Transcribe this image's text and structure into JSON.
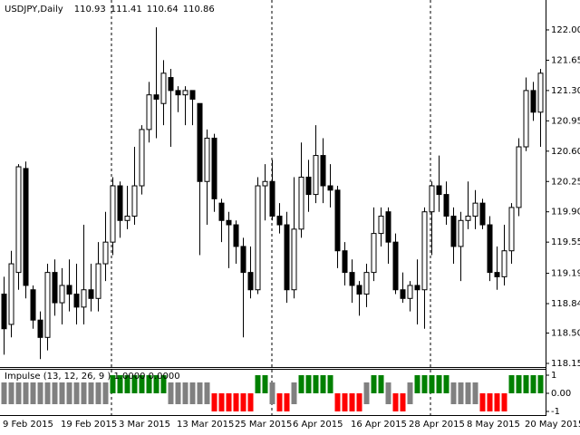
{
  "chart_data": [
    {
      "type": "candlestick",
      "title": "USDJPY,Daily",
      "quote": [
        110.93,
        111.41,
        110.64,
        110.86
      ],
      "x": [
        "9 Feb 2015",
        null,
        null,
        null,
        null,
        null,
        null,
        null,
        "19 Feb 2015",
        null,
        null,
        null,
        null,
        null,
        null,
        null,
        "3 Mar 2015",
        null,
        null,
        null,
        null,
        null,
        null,
        null,
        "13 Mar 2015",
        null,
        null,
        null,
        null,
        null,
        null,
        null,
        "25 Mar 2015",
        null,
        null,
        null,
        null,
        null,
        null,
        null,
        "6 Apr 2015",
        null,
        null,
        null,
        null,
        null,
        null,
        null,
        "16 Apr 2015",
        null,
        null,
        null,
        null,
        null,
        null,
        null,
        "28 Apr 2015",
        null,
        null,
        null,
        null,
        null,
        null,
        null,
        "8 May 2015",
        null,
        null,
        null,
        null,
        null,
        null,
        null,
        "20 May 2015",
        null,
        null
      ],
      "open": [
        118.95,
        118.6,
        119.2,
        120.4,
        119.0,
        118.65,
        118.45,
        119.2,
        118.85,
        119.05,
        118.95,
        118.8,
        119.0,
        118.9,
        119.3,
        119.55,
        120.2,
        119.8,
        119.85,
        120.2,
        120.85,
        121.25,
        121.15,
        121.45,
        121.3,
        121.25,
        121.3,
        121.15,
        120.25,
        120.75,
        120.0,
        119.8,
        119.75,
        119.5,
        119.2,
        119.0,
        120.2,
        120.25,
        119.85,
        119.75,
        119.0,
        119.7,
        120.3,
        120.1,
        120.55,
        120.2,
        120.15,
        119.45,
        119.2,
        119.05,
        118.95,
        119.2,
        119.65,
        119.9,
        119.55,
        119.0,
        118.9,
        119.05,
        119.0,
        119.9,
        120.2,
        120.1,
        119.85,
        119.5,
        119.8,
        119.85,
        120.0,
        119.75,
        119.2,
        119.15,
        119.45,
        119.95,
        120.65,
        121.3,
        121.05
      ],
      "high": [
        119.15,
        119.45,
        120.45,
        120.48,
        119.05,
        118.75,
        119.3,
        119.35,
        119.25,
        119.35,
        119.3,
        119.75,
        119.3,
        119.55,
        119.9,
        120.3,
        120.25,
        120.2,
        120.65,
        120.9,
        121.4,
        122.03,
        121.65,
        121.55,
        121.35,
        121.35,
        121.3,
        121.15,
        120.85,
        120.8,
        120.05,
        119.9,
        119.8,
        119.6,
        119.5,
        120.3,
        120.45,
        120.5,
        120.0,
        119.9,
        120.3,
        120.7,
        120.5,
        120.9,
        120.75,
        120.45,
        120.2,
        119.55,
        119.35,
        119.1,
        119.3,
        119.95,
        119.95,
        119.95,
        119.65,
        119.2,
        119.1,
        119.35,
        119.95,
        120.25,
        120.55,
        120.25,
        119.95,
        119.9,
        120.25,
        120.15,
        120.05,
        119.85,
        119.5,
        119.75,
        120.0,
        120.75,
        121.45,
        121.4,
        121.55
      ],
      "low": [
        118.25,
        118.45,
        119.0,
        118.9,
        118.55,
        118.2,
        118.3,
        118.7,
        118.6,
        118.75,
        118.6,
        118.6,
        118.75,
        118.75,
        119.1,
        119.4,
        119.6,
        119.7,
        119.75,
        120.1,
        120.7,
        120.75,
        120.9,
        120.65,
        121.05,
        120.9,
        120.9,
        119.4,
        119.75,
        119.9,
        119.55,
        119.25,
        119.3,
        118.45,
        118.9,
        118.95,
        119.8,
        119.8,
        119.65,
        118.85,
        118.9,
        119.6,
        119.9,
        120.0,
        120.0,
        119.95,
        119.25,
        119.05,
        118.85,
        118.7,
        118.8,
        119.1,
        119.5,
        119.3,
        118.95,
        118.85,
        118.75,
        118.6,
        118.55,
        119.4,
        119.9,
        119.75,
        119.3,
        119.1,
        119.7,
        119.7,
        119.7,
        119.1,
        119.0,
        119.05,
        119.3,
        119.85,
        120.6,
        120.95,
        120.65
      ],
      "close": [
        118.55,
        119.3,
        120.42,
        119.05,
        118.65,
        118.45,
        119.2,
        118.85,
        119.05,
        118.95,
        118.8,
        119.0,
        118.9,
        119.3,
        119.55,
        120.2,
        119.8,
        119.85,
        120.2,
        120.85,
        121.25,
        121.2,
        121.5,
        121.3,
        121.25,
        121.3,
        121.2,
        120.25,
        120.75,
        120.05,
        119.8,
        119.75,
        119.5,
        119.2,
        119.0,
        120.2,
        120.25,
        119.85,
        119.75,
        119.0,
        119.7,
        120.3,
        120.1,
        120.55,
        120.2,
        120.15,
        119.45,
        119.2,
        119.05,
        118.95,
        119.2,
        119.65,
        119.85,
        119.55,
        119.0,
        118.9,
        119.05,
        119.0,
        119.9,
        120.2,
        120.1,
        119.85,
        119.5,
        119.8,
        119.85,
        120.0,
        119.75,
        119.2,
        119.15,
        119.45,
        119.95,
        120.65,
        121.3,
        121.05,
        121.5
      ],
      "up_color": "#ffffff",
      "down_color": "#000000",
      "outline_color": "#000000",
      "ylim": [
        118.108,
        122.345
      ],
      "yticks": [
        {
          "value": 122.0,
          "label": "122.00"
        },
        121.65,
        {
          "value": 121.3,
          "label": "121.30"
        },
        120.95,
        {
          "value": 120.6,
          "label": "120.60"
        },
        120.25,
        {
          "value": 119.9,
          "label": "119.90"
        },
        119.55,
        119.19,
        118.84,
        {
          "value": 118.5,
          "label": "118.50"
        },
        118.15
      ]
    },
    {
      "type": "bar",
      "title": "Impulse (13, 12, 26, 9 ) 1.0000 0.0000",
      "values": [
        0,
        0,
        0,
        0,
        0,
        0,
        0,
        0,
        0,
        0,
        0,
        0,
        0,
        0,
        0,
        1,
        1,
        1,
        1,
        1,
        1,
        1,
        1,
        0,
        0,
        0,
        0,
        0,
        0,
        -1,
        -1,
        -1,
        -1,
        -1,
        -1,
        1,
        1,
        0,
        -1,
        -1,
        0,
        1,
        1,
        1,
        1,
        1,
        -1,
        -1,
        -1,
        -1,
        0,
        1,
        1,
        0,
        -1,
        -1,
        0,
        1,
        1,
        1,
        1,
        1,
        0,
        0,
        0,
        0,
        -1,
        -1,
        -1,
        -1,
        1,
        1,
        1,
        1,
        1
      ],
      "up_color": "#008000",
      "down_color": "#ff0000",
      "neutral_color": "#808080",
      "ylim": [
        -1.2,
        1.35
      ],
      "yticks": [
        1,
        {
          "value": 0,
          "label": "0.00"
        },
        -1
      ]
    }
  ]
}
